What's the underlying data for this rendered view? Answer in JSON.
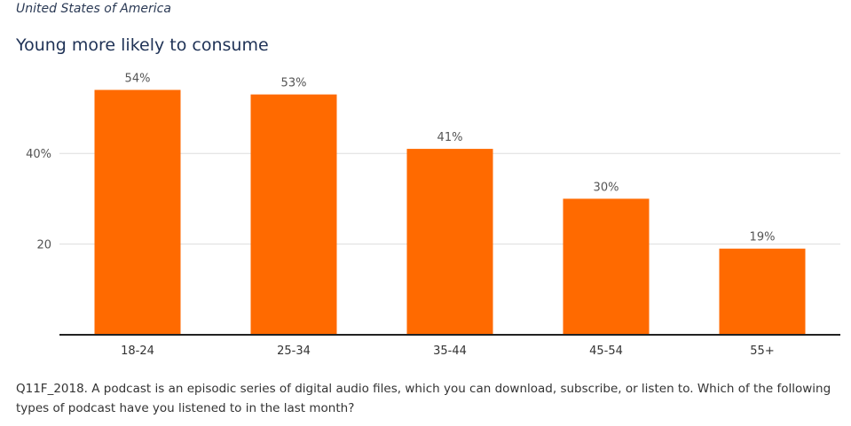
{
  "header": {
    "subtitle": "United States of America",
    "title": "Young more likely to consume"
  },
  "footnote": "Q11F_2018. A podcast is an episodic series of digital audio files, which you can download, subscribe, or listen to. Which of the following types of podcast have you listened to in the last month?",
  "colors": {
    "bar": "#ff6a00",
    "gridline": "#dddddd",
    "axis": "#222222",
    "text": "#555555"
  },
  "chart_data": {
    "type": "bar",
    "categories": [
      "18-24",
      "25-34",
      "35-44",
      "45-54",
      "55+"
    ],
    "values": [
      54,
      53,
      41,
      30,
      19
    ],
    "value_labels": [
      "54%",
      "53%",
      "41%",
      "30%",
      "19%"
    ],
    "yticks": [
      {
        "value": 20,
        "label": "20"
      },
      {
        "value": 40,
        "label": "40%"
      }
    ],
    "ylim": [
      0,
      60
    ],
    "xlabel": "",
    "ylabel": "",
    "grid": true,
    "legend": "none"
  }
}
